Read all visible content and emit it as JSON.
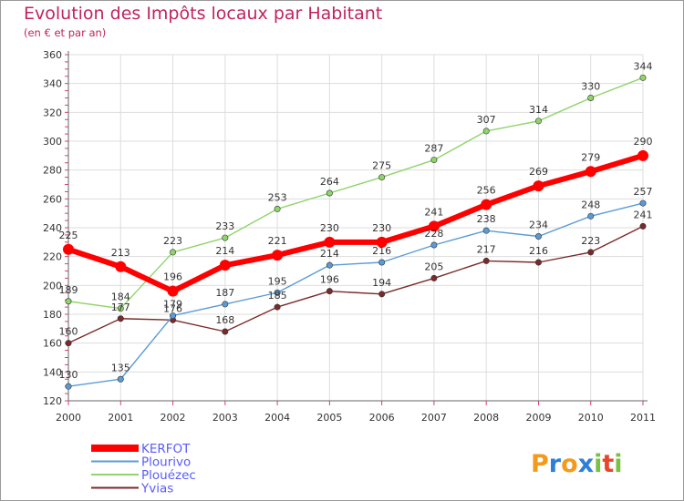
{
  "chart_data": {
    "type": "line",
    "title": "Evolution des Impôts locaux par Habitant",
    "subtitle": "(en € et par an)",
    "x": [
      "2000",
      "2001",
      "2002",
      "2003",
      "2004",
      "2005",
      "2006",
      "2007",
      "2008",
      "2009",
      "2010",
      "2011"
    ],
    "ylim": [
      120,
      360
    ],
    "yticks": [
      120,
      140,
      160,
      180,
      200,
      220,
      240,
      260,
      280,
      300,
      320,
      340,
      360
    ],
    "grid": true,
    "legend_position": "bottom-left",
    "series": [
      {
        "name": "KERFOT",
        "color": "#ff0000",
        "values": [
          225,
          213,
          196,
          214,
          221,
          230,
          230,
          241,
          256,
          269,
          279,
          290
        ]
      },
      {
        "name": "Plourivo",
        "color": "#5b9bd5",
        "values": [
          130,
          135,
          179,
          187,
          195,
          214,
          216,
          228,
          238,
          234,
          248,
          257
        ]
      },
      {
        "name": "Plouézec",
        "color": "#8fd46a",
        "values": [
          189,
          184,
          223,
          233,
          253,
          264,
          275,
          287,
          307,
          314,
          330,
          344
        ]
      },
      {
        "name": "Yvias",
        "color": "#7a2a2a",
        "values": [
          160,
          177,
          176,
          168,
          185,
          196,
          194,
          205,
          217,
          216,
          223,
          241
        ]
      }
    ]
  },
  "legend": {
    "items": [
      "KERFOT",
      "Plourivo",
      "Plouézec",
      "Yvias"
    ],
    "colors": [
      "#5a5aff",
      "#5a5aff",
      "#5a5aff",
      "#5a5aff"
    ]
  },
  "logo": {
    "letters": [
      "P",
      "r",
      "o",
      "x",
      "i",
      "t",
      "i"
    ],
    "colors": [
      "#f39a1c",
      "#2e7fd8",
      "#f39a1c",
      "#2e7fd8",
      "#7ac143",
      "#e8452c",
      "#7ac143"
    ]
  }
}
